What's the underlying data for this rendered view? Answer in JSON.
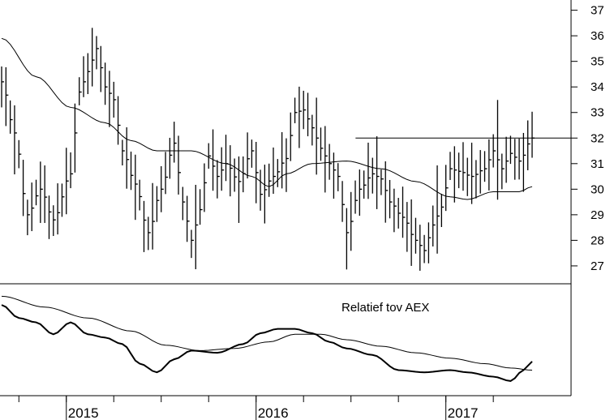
{
  "chart_data": [
    {
      "type": "ohlc",
      "panel": "price",
      "ylim": [
        26.3,
        37.4
      ],
      "y_ticks": [
        "27",
        "28",
        "29",
        "30",
        "31",
        "32",
        "33",
        "34",
        "35",
        "36",
        "37"
      ],
      "y_tick_values": [
        27,
        28,
        29,
        30,
        31,
        32,
        33,
        34,
        35,
        36,
        37
      ],
      "bar_color": "#000000",
      "resistance_line": {
        "y": 32.0,
        "from_week": 83,
        "to_week": 123
      },
      "ohlc": [],
      "moving_average_color": "#000000"
    },
    {
      "type": "line",
      "panel": "relative",
      "title": "Relatief tov AEX",
      "series": [
        {
          "values": []
        },
        {
          "values": []
        }
      ]
    }
  ],
  "x_axis": {
    "year_labels": [
      "2015",
      "2016",
      "2017"
    ],
    "year_start_weeks": [
      15,
      59,
      103
    ],
    "total_weeks": 124
  }
}
